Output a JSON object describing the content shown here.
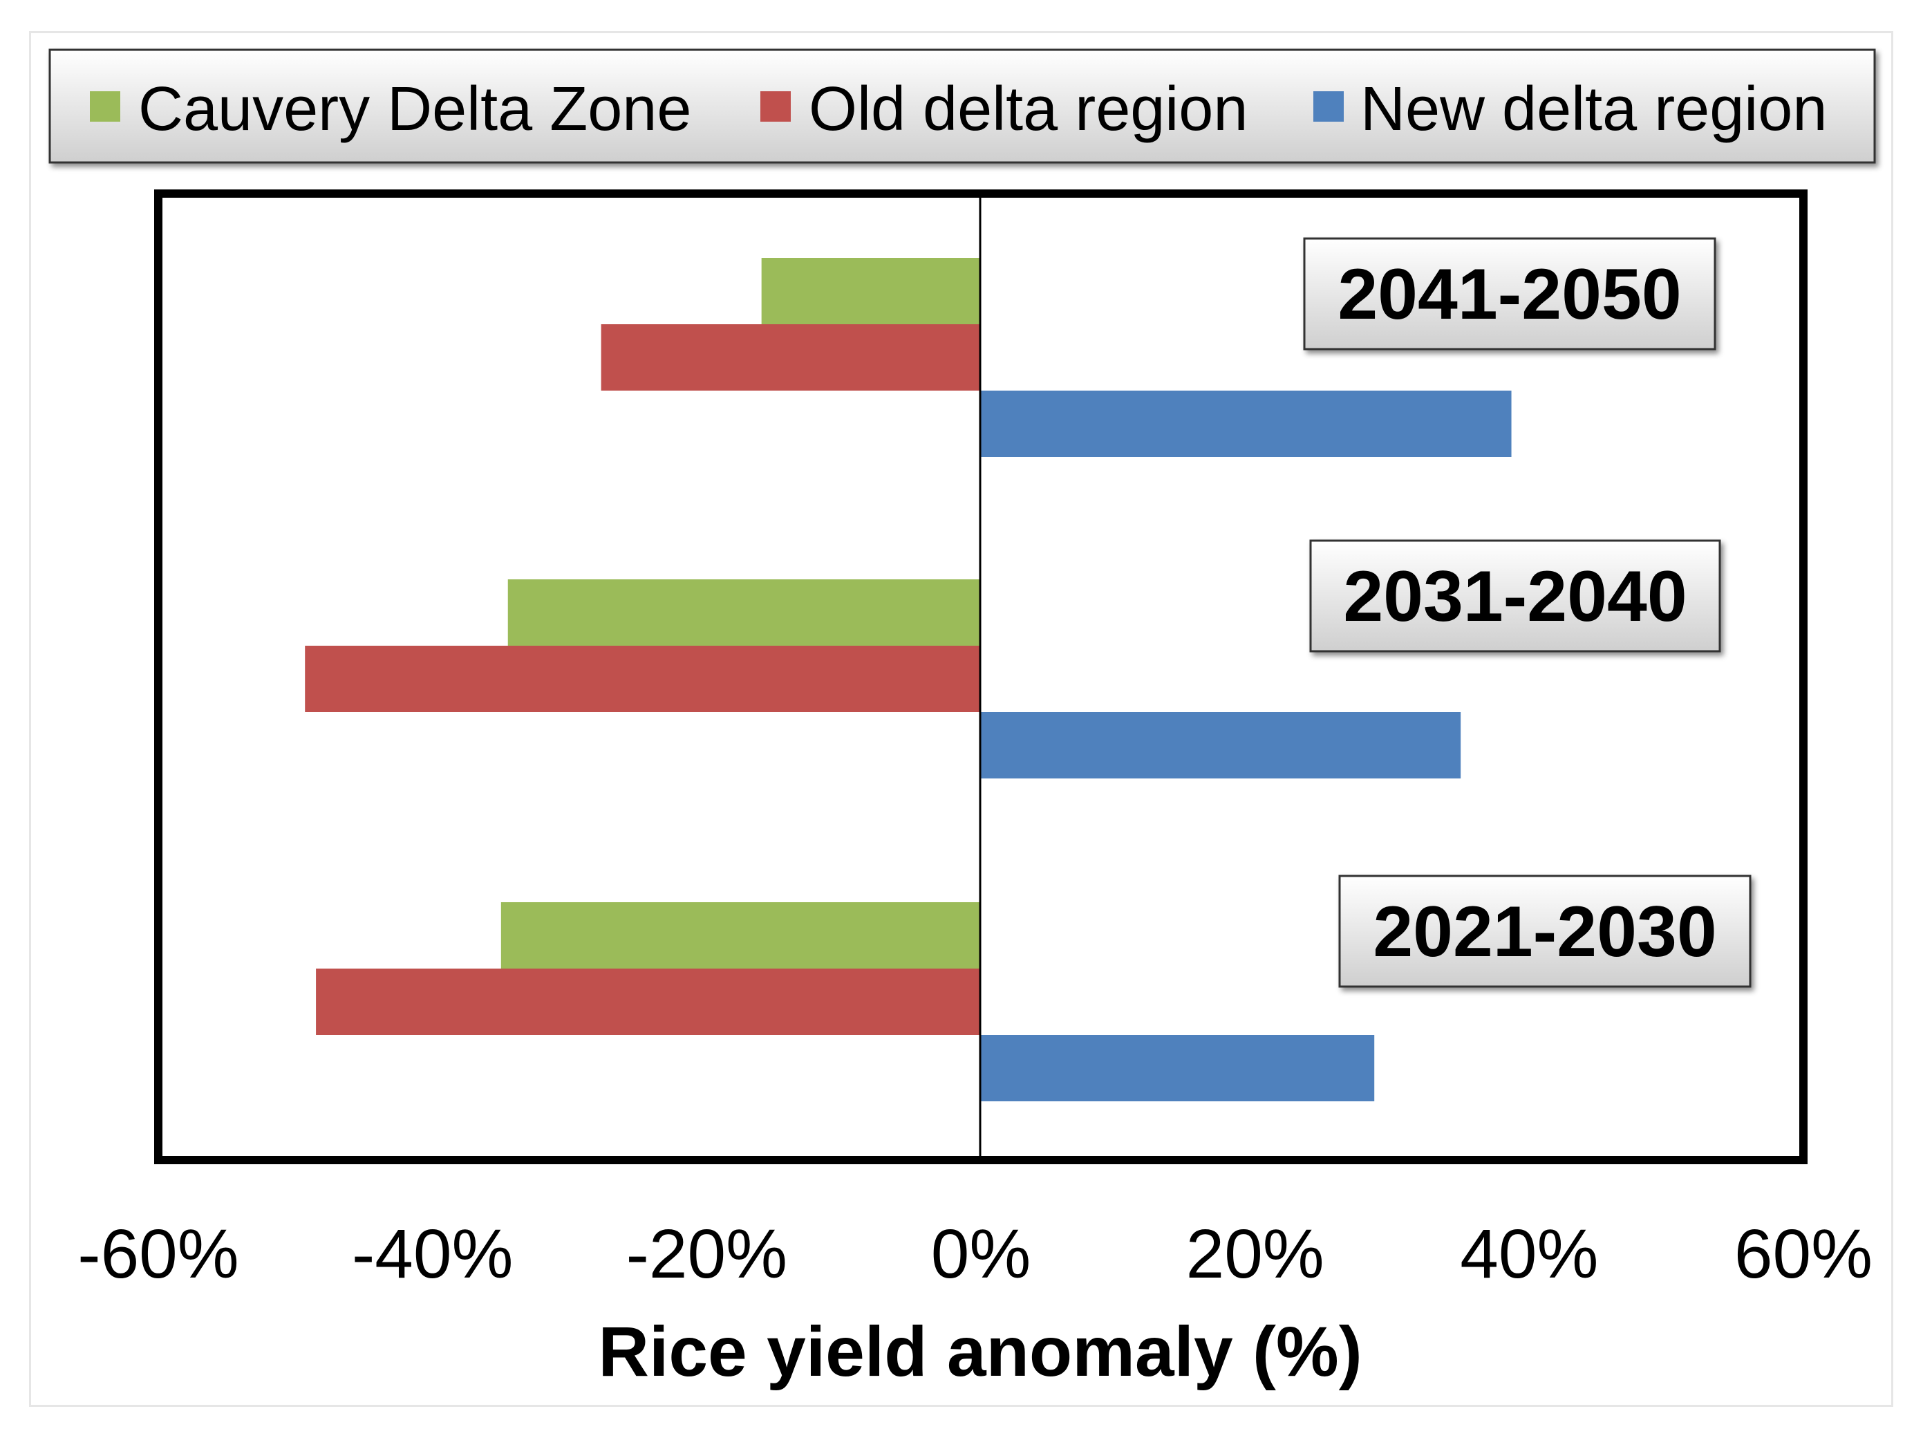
{
  "chart_data": {
    "type": "bar",
    "orientation": "horizontal",
    "xlabel": "Rice yield anomaly (%)",
    "xlim": [
      -60,
      60
    ],
    "xticks": [
      -60,
      -40,
      -20,
      0,
      20,
      40,
      60
    ],
    "xtick_labels": [
      "-60%",
      "-40%",
      "-20%",
      "0%",
      "20%",
      "40%",
      "60%"
    ],
    "grid": false,
    "legend_position": "top",
    "categories": [
      "2041-2050",
      "2031-2040",
      "2021-2030"
    ],
    "series": [
      {
        "name": "Cauvery Delta Zone",
        "color": "#9bbb59",
        "values": [
          -16,
          -34.5,
          -35
        ]
      },
      {
        "name": "Old delta region",
        "color": "#c0504d",
        "values": [
          -27.7,
          -49.3,
          -48.5
        ]
      },
      {
        "name": "New delta region",
        "color": "#4f81bd",
        "values": [
          38.7,
          35,
          28.7
        ]
      }
    ]
  }
}
